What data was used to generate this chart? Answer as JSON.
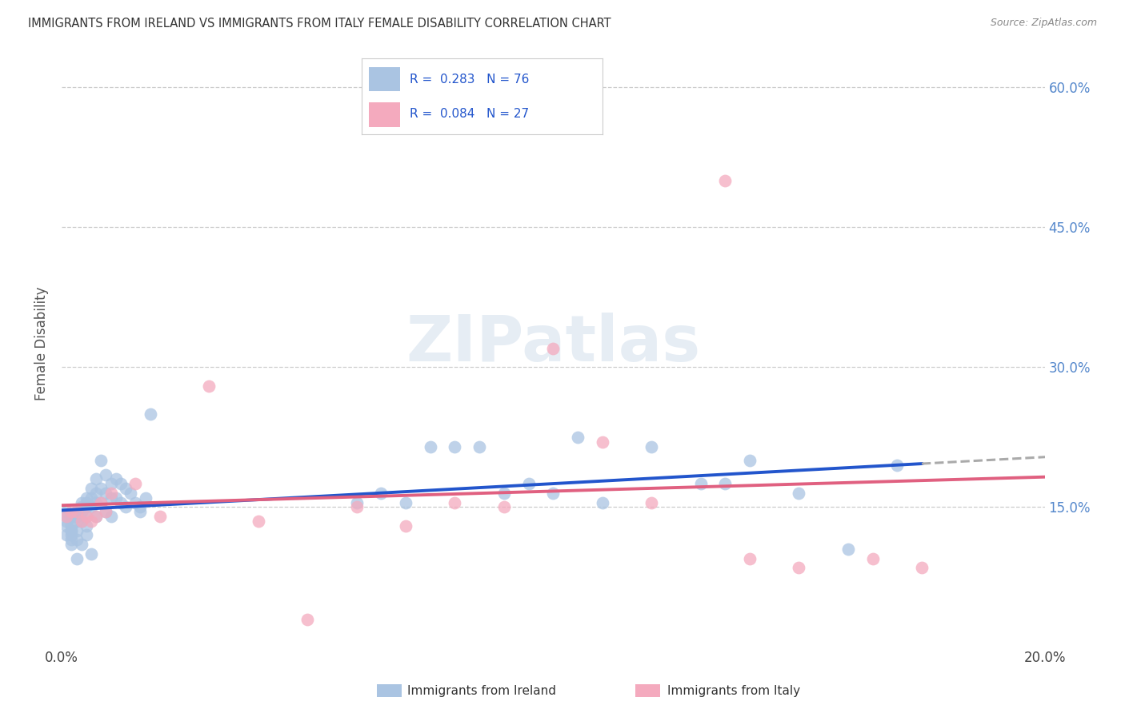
{
  "title": "IMMIGRANTS FROM IRELAND VS IMMIGRANTS FROM ITALY FEMALE DISABILITY CORRELATION CHART",
  "source": "Source: ZipAtlas.com",
  "ylabel": "Female Disability",
  "xlim": [
    0.0,
    0.2
  ],
  "ylim": [
    0.0,
    0.65
  ],
  "ireland_color": "#aac4e2",
  "italy_color": "#f4aabe",
  "ireland_line_color": "#2255cc",
  "italy_line_color": "#e06080",
  "ireland_R": 0.283,
  "ireland_N": 76,
  "italy_R": 0.084,
  "italy_N": 27,
  "background_color": "#ffffff",
  "grid_color": "#cccccc",
  "title_color": "#333333",
  "right_tick_color": "#5588cc",
  "ireland_x": [
    0.001,
    0.001,
    0.001,
    0.001,
    0.001,
    0.002,
    0.002,
    0.002,
    0.002,
    0.002,
    0.002,
    0.002,
    0.003,
    0.003,
    0.003,
    0.003,
    0.003,
    0.003,
    0.004,
    0.004,
    0.004,
    0.004,
    0.004,
    0.005,
    0.005,
    0.005,
    0.005,
    0.005,
    0.005,
    0.006,
    0.006,
    0.006,
    0.006,
    0.007,
    0.007,
    0.007,
    0.007,
    0.008,
    0.008,
    0.008,
    0.009,
    0.009,
    0.009,
    0.01,
    0.01,
    0.01,
    0.011,
    0.011,
    0.012,
    0.012,
    0.013,
    0.013,
    0.014,
    0.015,
    0.016,
    0.016,
    0.017,
    0.018,
    0.06,
    0.065,
    0.07,
    0.075,
    0.08,
    0.085,
    0.09,
    0.095,
    0.1,
    0.105,
    0.11,
    0.12,
    0.13,
    0.135,
    0.14,
    0.15,
    0.16,
    0.17
  ],
  "ireland_y": [
    0.13,
    0.135,
    0.14,
    0.145,
    0.12,
    0.14,
    0.13,
    0.125,
    0.115,
    0.11,
    0.12,
    0.125,
    0.14,
    0.145,
    0.135,
    0.125,
    0.115,
    0.095,
    0.155,
    0.15,
    0.145,
    0.135,
    0.11,
    0.16,
    0.155,
    0.15,
    0.14,
    0.13,
    0.12,
    0.17,
    0.16,
    0.15,
    0.1,
    0.18,
    0.165,
    0.155,
    0.14,
    0.2,
    0.17,
    0.155,
    0.185,
    0.165,
    0.145,
    0.175,
    0.16,
    0.14,
    0.18,
    0.16,
    0.175,
    0.155,
    0.17,
    0.15,
    0.165,
    0.155,
    0.15,
    0.145,
    0.16,
    0.25,
    0.155,
    0.165,
    0.155,
    0.215,
    0.215,
    0.215,
    0.165,
    0.175,
    0.165,
    0.225,
    0.155,
    0.215,
    0.175,
    0.175,
    0.2,
    0.165,
    0.105,
    0.195
  ],
  "italy_x": [
    0.001,
    0.002,
    0.003,
    0.004,
    0.005,
    0.006,
    0.007,
    0.008,
    0.009,
    0.01,
    0.015,
    0.02,
    0.03,
    0.04,
    0.05,
    0.06,
    0.07,
    0.08,
    0.09,
    0.1,
    0.11,
    0.12,
    0.135,
    0.14,
    0.15,
    0.165,
    0.175
  ],
  "italy_y": [
    0.14,
    0.145,
    0.145,
    0.135,
    0.14,
    0.135,
    0.14,
    0.155,
    0.145,
    0.165,
    0.175,
    0.14,
    0.28,
    0.135,
    0.03,
    0.15,
    0.13,
    0.155,
    0.15,
    0.32,
    0.22,
    0.155,
    0.5,
    0.095,
    0.085,
    0.095,
    0.085
  ]
}
